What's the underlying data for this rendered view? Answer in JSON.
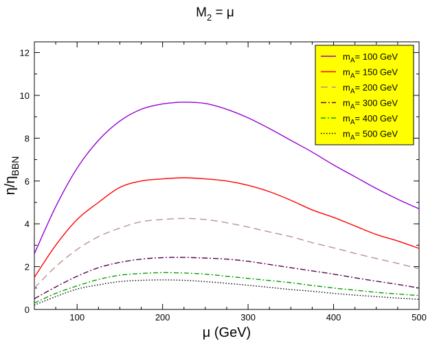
{
  "chart_data": {
    "type": "line",
    "title": {
      "prefix": "M",
      "sub": "2",
      "suffix": " = μ"
    },
    "xlabel": "μ (GeV)",
    "ylabel": {
      "main": "η/η",
      "sub": "BBN"
    },
    "xlim": [
      50,
      500
    ],
    "ylim": [
      0,
      12.5
    ],
    "xticks": [
      100,
      200,
      300,
      400,
      500
    ],
    "yticks": [
      0,
      2,
      4,
      6,
      8,
      10,
      12
    ],
    "x": [
      50,
      75,
      100,
      125,
      150,
      175,
      200,
      225,
      250,
      275,
      300,
      325,
      350,
      375,
      400,
      425,
      450,
      475,
      500
    ],
    "series": [
      {
        "name": "100 GeV",
        "color": "#9400D3",
        "dash": "solid",
        "values": [
          2.6,
          4.8,
          6.6,
          7.9,
          8.8,
          9.35,
          9.6,
          9.68,
          9.62,
          9.35,
          8.95,
          8.45,
          7.9,
          7.35,
          6.75,
          6.2,
          5.65,
          5.15,
          4.7
        ]
      },
      {
        "name": "150 GeV",
        "color": "#FF0000",
        "dash": "solid",
        "values": [
          1.5,
          3.0,
          4.2,
          5.0,
          5.7,
          6.0,
          6.1,
          6.15,
          6.1,
          6.0,
          5.8,
          5.5,
          5.1,
          4.65,
          4.3,
          3.9,
          3.5,
          3.2,
          2.85
        ]
      },
      {
        "name": "200 GeV",
        "color": "#BC8F8F",
        "dash": "10,6",
        "values": [
          1.0,
          2.0,
          2.8,
          3.4,
          3.8,
          4.1,
          4.2,
          4.25,
          4.2,
          4.05,
          3.85,
          3.62,
          3.4,
          3.12,
          2.88,
          2.62,
          2.38,
          2.15,
          1.9
        ]
      },
      {
        "name": "300 GeV",
        "color": "#5A0050",
        "dash": "8,3,2,3",
        "values": [
          0.5,
          1.05,
          1.55,
          1.95,
          2.2,
          2.35,
          2.42,
          2.43,
          2.4,
          2.35,
          2.25,
          2.1,
          1.95,
          1.8,
          1.65,
          1.48,
          1.32,
          1.17,
          1.0
        ]
      },
      {
        "name": "400 GeV",
        "color": "#00A000",
        "dash": "7,3,2,3",
        "values": [
          0.3,
          0.75,
          1.1,
          1.4,
          1.6,
          1.68,
          1.72,
          1.7,
          1.65,
          1.55,
          1.45,
          1.35,
          1.25,
          1.12,
          1.0,
          0.9,
          0.8,
          0.72,
          0.65
        ]
      },
      {
        "name": "500 GeV",
        "color": "#000000",
        "dash": "1.5,2.5",
        "values": [
          0.2,
          0.6,
          0.95,
          1.15,
          1.3,
          1.36,
          1.38,
          1.36,
          1.3,
          1.22,
          1.13,
          1.03,
          0.93,
          0.85,
          0.75,
          0.67,
          0.6,
          0.53,
          0.47
        ]
      }
    ],
    "legend": {
      "position": "top-right",
      "background": "#FFFF00",
      "label_prefix": "m",
      "label_sub": "A",
      "label_suffix": "= "
    }
  }
}
